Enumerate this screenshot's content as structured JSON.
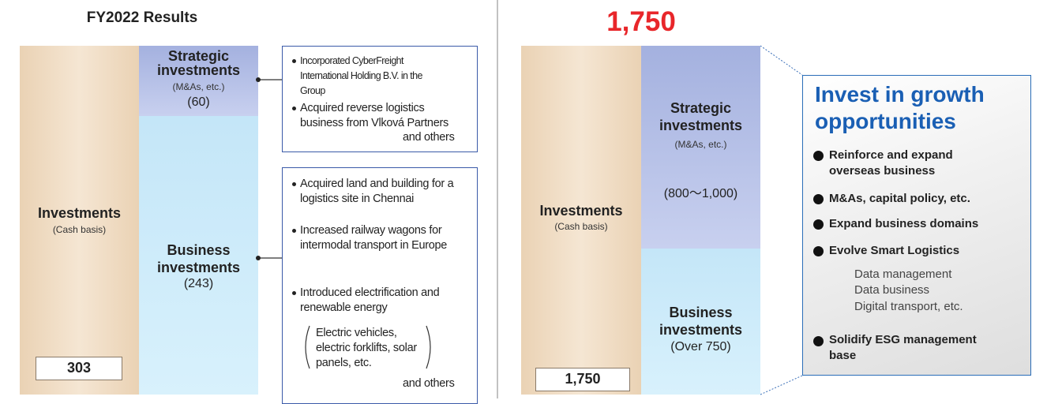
{
  "left": {
    "title": "FY2022 Results",
    "investments": {
      "label": "Investments",
      "basis": "(Cash basis)",
      "total": "303"
    },
    "strategic": {
      "label": "Strategic investments",
      "note": "(M&As, etc.)",
      "amount": "(60)"
    },
    "business": {
      "label": "Business investments",
      "amount": "(243)"
    },
    "strategic_notes": {
      "items": [
        "Incorporated CyberFreight International Holding B.V. in the Group",
        "Acquired reverse logistics business from Vlková Partners"
      ],
      "others": "and others"
    },
    "business_notes": {
      "items": [
        "Acquired land and building for a logistics site in Chennai",
        "Increased railway wagons for intermodal transport in Europe",
        "Introduced electrification and renewable energy"
      ],
      "examples": "Electric vehicles, electric forklifts, solar panels, etc.",
      "others": "and others"
    }
  },
  "right": {
    "title": "1,750",
    "investments": {
      "label": "Investments",
      "basis": "(Cash basis)",
      "total": "1,750"
    },
    "strategic": {
      "label": "Strategic investments",
      "note": "(M&As, etc.)",
      "amount": "(800〜1,000)"
    },
    "business": {
      "label": "Business investments",
      "amount": "(Over 750)"
    },
    "growth": {
      "title": "Invest in growth opportunities",
      "items": [
        "Reinforce and expand overseas business",
        "M&As, capital policy, etc.",
        "Expand business domains",
        "Evolve Smart Logistics"
      ],
      "examples": [
        "Data management",
        "Data business",
        "Digital transport, etc."
      ],
      "last_item": "Solidify ESG management base"
    }
  }
}
